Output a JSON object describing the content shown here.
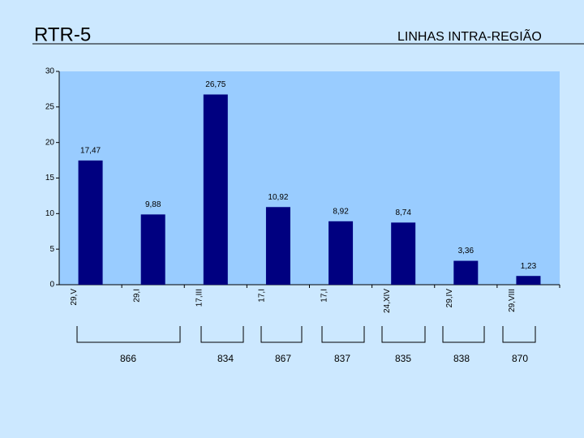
{
  "header": {
    "title": "RTR-5",
    "subtitle": "LINHAS INTRA-REGIÃO"
  },
  "chart_data": {
    "type": "bar",
    "categories": [
      "29,V",
      "29,I",
      "17,III",
      "17,I",
      "17,I",
      "24,XIV",
      "29,IV",
      "29,VIII"
    ],
    "values": [
      17.47,
      9.88,
      26.75,
      10.92,
      8.92,
      8.74,
      3.36,
      1.23
    ],
    "value_labels": [
      "17,47",
      "9,88",
      "26,75",
      "10,92",
      "8,92",
      "8,74",
      "3,36",
      "1,23"
    ],
    "color": "#000080",
    "ylim": [
      0,
      30
    ],
    "yticks": [
      0,
      5,
      10,
      15,
      20,
      25,
      30
    ]
  },
  "groups": [
    "866",
    "834",
    "867",
    "837",
    "835",
    "838",
    "870"
  ]
}
